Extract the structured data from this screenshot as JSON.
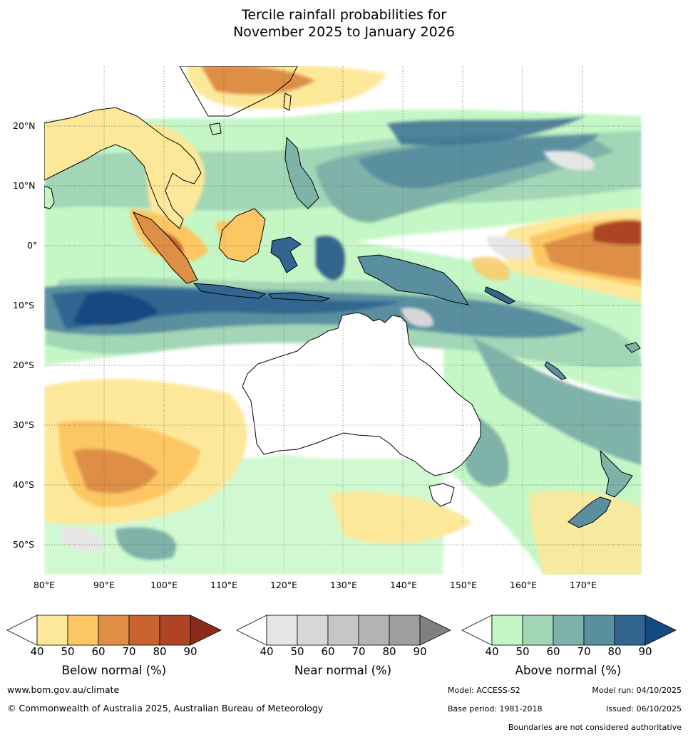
{
  "title": {
    "line1": "Tercile rainfall probabilities for",
    "line2": "November 2025 to January 2026"
  },
  "map": {
    "lat_labels": [
      "20°N",
      "10°N",
      "0°",
      "10°S",
      "20°S",
      "30°S",
      "40°S",
      "50°S"
    ],
    "lon_labels": [
      "80°E",
      "90°E",
      "100°E",
      "110°E",
      "120°E",
      "130°E",
      "140°E",
      "150°E",
      "160°E",
      "170°E"
    ],
    "lat_range": [
      -55,
      30
    ],
    "lon_range": [
      80,
      180
    ],
    "colors": {
      "ocean_background": "#ffffff",
      "coastline": "#000000",
      "gridline": "#555555"
    }
  },
  "legend": {
    "below": {
      "title": "Below normal (%)",
      "ticks": [
        "40",
        "50",
        "60",
        "70",
        "80",
        "90"
      ],
      "colors": [
        "#fde89a",
        "#fcc763",
        "#de8f45",
        "#c8622f",
        "#ad4524",
        "#8c2a1a"
      ]
    },
    "near": {
      "title": "Near normal (%)",
      "ticks": [
        "40",
        "50",
        "60",
        "70",
        "80",
        "90"
      ],
      "colors": [
        "#e6e6e6",
        "#d7d7d7",
        "#c6c6c6",
        "#b4b4b4",
        "#9e9e9e",
        "#808080"
      ]
    },
    "above": {
      "title": "Above normal (%)",
      "ticks": [
        "40",
        "50",
        "60",
        "70",
        "80",
        "90"
      ],
      "colors": [
        "#c5f7c6",
        "#a3d6b6",
        "#7fb2a9",
        "#5a8fa0",
        "#326690",
        "#134a82"
      ]
    }
  },
  "footer": {
    "website": "www.bom.gov.au/climate",
    "copyright": "© Commonwealth of Australia 2025, Australian Bureau of Meteorology",
    "model": "Model: ACCESS-S2",
    "model_run": "Model run: 04/10/2025",
    "base_period": "Base period: 1981-2018",
    "issued": "Issued: 06/10/2025",
    "disclaimer": "Boundaries are not considered authoritative"
  }
}
